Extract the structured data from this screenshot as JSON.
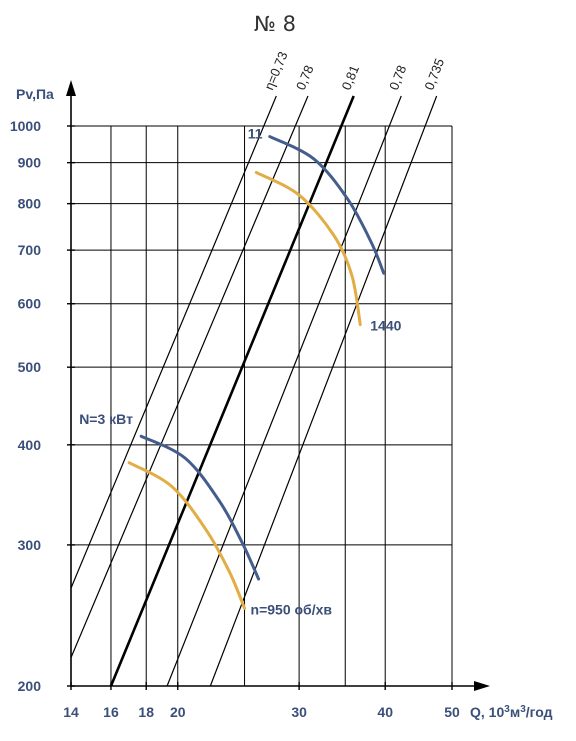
{
  "chart_data": {
    "type": "line",
    "title": "№ 8",
    "ylabel": "Pv,Па",
    "xlabel": "Q, 10³м³/год",
    "xscale": "log",
    "yscale": "log",
    "xlim": [
      14,
      50
    ],
    "ylim": [
      200,
      1000
    ],
    "x_ticks": [
      14,
      16,
      18,
      20,
      30,
      40,
      50
    ],
    "x_tick_labels": [
      "14",
      "16",
      "18",
      "20",
      "30",
      "40",
      "50"
    ],
    "x_grid": [
      16,
      18,
      20,
      25,
      30,
      35,
      40,
      50
    ],
    "y_ticks": [
      200,
      300,
      400,
      500,
      600,
      700,
      800,
      900,
      1000
    ],
    "y_tick_labels": [
      "200",
      "300",
      "400",
      "500",
      "600",
      "700",
      "800",
      "900",
      "1000"
    ],
    "grid": true,
    "efficiency_lines": [
      {
        "label": "η=0,73",
        "points": [
          [
            14,
            265
          ],
          [
            27.8,
            1090
          ]
        ]
      },
      {
        "label": "0,78",
        "points": [
          [
            14,
            217
          ],
          [
            30.9,
            1090
          ]
        ]
      },
      {
        "label": "0,81",
        "points": [
          [
            16,
            200
          ],
          [
            36.0,
            1090
          ]
        ],
        "bold": true
      },
      {
        "label": "0,78",
        "points": [
          [
            19.3,
            200
          ],
          [
            42.2,
            1090
          ]
        ]
      },
      {
        "label": "0,735",
        "points": [
          [
            22.3,
            200
          ],
          [
            47.5,
            1090
          ]
        ]
      }
    ],
    "series": [
      {
        "name": "N=3 кВт",
        "color": "#445d8c",
        "points": [
          [
            17.7,
            410
          ],
          [
            20.5,
            385
          ],
          [
            23.0,
            340
          ],
          [
            24.8,
            302
          ],
          [
            26.2,
            272
          ]
        ]
      },
      {
        "name": "",
        "color": "#e1ad44",
        "points": [
          [
            17.0,
            380
          ],
          [
            19.6,
            355
          ],
          [
            22.0,
            313
          ],
          [
            23.8,
            277
          ],
          [
            25.0,
            250
          ]
        ]
      },
      {
        "name": "11",
        "color": "#445d8c",
        "points": [
          [
            27.2,
            970
          ],
          [
            31.5,
            910
          ],
          [
            35.3,
            810
          ],
          [
            38.2,
            715
          ],
          [
            39.8,
            655
          ]
        ]
      },
      {
        "name": "",
        "color": "#e1ad44",
        "points": [
          [
            26.0,
            875
          ],
          [
            30.0,
            820
          ],
          [
            33.7,
            730
          ],
          [
            35.8,
            650
          ],
          [
            36.8,
            565
          ]
        ]
      }
    ],
    "annotations": [
      {
        "text": "N=3 кВт",
        "at": [
          17.7,
          410
        ]
      },
      {
        "text": "n=950 об/хв",
        "at": [
          25.0,
          250
        ]
      },
      {
        "text": "11",
        "at": [
          27.2,
          970
        ]
      },
      {
        "text": "1440",
        "at": [
          36.8,
          565
        ]
      }
    ]
  }
}
